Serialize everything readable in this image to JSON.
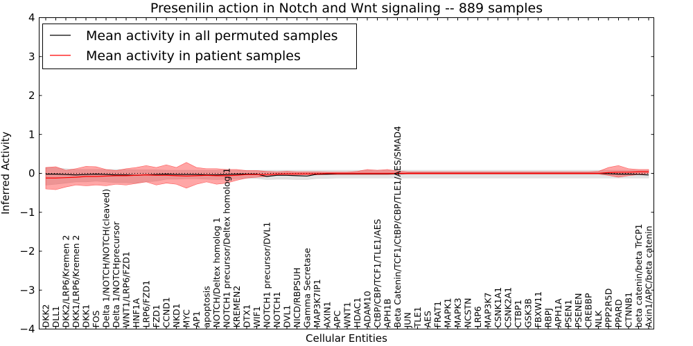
{
  "chart_data": {
    "type": "line",
    "title": "Presenilin action in Notch and Wnt signaling -- 889 samples",
    "xlabel": "Cellular Entities",
    "ylabel": "Inferred Activity",
    "ylim": [
      -4,
      4
    ],
    "yticks": [
      "4",
      "3",
      "2",
      "1",
      "0",
      "−1",
      "−2",
      "−3",
      "−4"
    ],
    "ytick_values": [
      4,
      3,
      2,
      1,
      0,
      -1,
      -2,
      -3,
      -4
    ],
    "grid": false,
    "legend_position": "top-left",
    "categories": [
      "DKK2",
      "DLL1",
      "DKK2/LRP6/Kremen 2",
      "DKK1/LRP6/Kremen 2",
      "DKK1",
      "FOS",
      "Delta 1/NOTCH/NOTCH(cleaved)",
      "Delta 1/NOTCHprecursor",
      "WNT1/LRP6/FZD1",
      "HNF1A",
      "LRP6/FZD1",
      "FZD1",
      "CCND1",
      "NKD1",
      "MYC",
      "AP1",
      "apoptosis",
      "NOTCH/Deltex homolog 1",
      "NOTCH1 precursor/Deltex homolog 1",
      "KREMEN2",
      "DTX1",
      "WIF1",
      "NOTCH1 precursor/DVL1",
      "NOTCH1",
      "DVL1",
      "NICD/RBPSUH",
      "Gamma Secretase",
      "MAP3K7IP1",
      "AXIN1",
      "APC",
      "WNT1",
      "HDAC1",
      "ADAM10",
      "CtBP/CBP/TCF1/TLE1/AES",
      "APH1B",
      "Beta Catenin/TCF1/CtBP/CBP/TLE1/AES/SMAD4",
      "JUN",
      "TLE1",
      "AES",
      "FRAT1",
      "MAPK1",
      "MAPK3",
      "NCSTN",
      "LRP6",
      "MAP3K7",
      "CSNK1A1",
      "CSNK2A1",
      "CTBP1",
      "GSK3B",
      "FBXW11",
      "RBPJ",
      "APH1A",
      "PSEN1",
      "PSENEN",
      "CREBBP",
      "NLK",
      "PPP2R5D",
      "PPARD",
      "CTNNB1",
      "beta catenin/beta TrCP1",
      "Axin1/APC/beta catenin"
    ],
    "series": [
      {
        "name": "Mean activity in all permuted samples",
        "color": "#000000",
        "values": [
          -0.02,
          -0.02,
          -0.03,
          -0.04,
          -0.03,
          -0.02,
          -0.03,
          -0.04,
          -0.04,
          -0.05,
          -0.04,
          -0.03,
          -0.02,
          -0.03,
          -0.03,
          -0.03,
          -0.04,
          -0.04,
          -0.03,
          -0.02,
          -0.02,
          -0.02,
          -0.08,
          -0.05,
          -0.05,
          -0.06,
          -0.07,
          -0.02,
          -0.02,
          -0.01,
          -0.01,
          -0.01,
          -0.01,
          -0.01,
          -0.01,
          -0.01,
          0.0,
          0.0,
          0.0,
          0.0,
          0.0,
          0.0,
          0.0,
          0.0,
          0.0,
          0.0,
          0.0,
          0.0,
          0.0,
          0.0,
          0.0,
          0.0,
          0.0,
          0.0,
          0.0,
          0.0,
          -0.01,
          -0.02,
          -0.02,
          -0.03,
          -0.04
        ],
        "lower": [
          -0.3,
          -0.28,
          -0.25,
          -0.22,
          -0.22,
          -0.2,
          -0.22,
          -0.24,
          -0.24,
          -0.25,
          -0.22,
          -0.2,
          -0.15,
          -0.15,
          -0.14,
          -0.14,
          -0.15,
          -0.16,
          -0.15,
          -0.14,
          -0.13,
          -0.13,
          -0.16,
          -0.15,
          -0.15,
          -0.16,
          -0.16,
          -0.13,
          -0.13,
          -0.12,
          -0.12,
          -0.12,
          -0.12,
          -0.12,
          -0.12,
          -0.12,
          -0.12,
          -0.12,
          -0.12,
          -0.12,
          -0.12,
          -0.12,
          -0.12,
          -0.12,
          -0.12,
          -0.12,
          -0.12,
          -0.12,
          -0.12,
          -0.12,
          -0.12,
          -0.12,
          -0.12,
          -0.12,
          -0.12,
          -0.12,
          -0.12,
          -0.12,
          -0.12,
          -0.12,
          -0.12
        ],
        "upper": [
          0.15,
          0.14,
          0.12,
          0.1,
          0.1,
          0.1,
          0.1,
          0.1,
          0.1,
          0.09,
          0.09,
          0.09,
          0.08,
          0.08,
          0.08,
          0.08,
          0.08,
          0.08,
          0.08,
          0.08,
          0.08,
          0.08,
          0.08,
          0.08,
          0.08,
          0.08,
          0.08,
          0.08,
          0.08,
          0.08,
          0.08,
          0.08,
          0.08,
          0.08,
          0.08,
          0.08,
          0.08,
          0.08,
          0.08,
          0.08,
          0.08,
          0.08,
          0.08,
          0.08,
          0.08,
          0.08,
          0.08,
          0.08,
          0.08,
          0.08,
          0.08,
          0.08,
          0.08,
          0.08,
          0.08,
          0.08,
          0.08,
          0.08,
          0.08,
          0.08,
          0.08
        ],
        "band_color": "#cccccc"
      },
      {
        "name": "Mean activity in patient samples",
        "color": "#ff0000",
        "values": [
          -0.12,
          -0.12,
          -0.11,
          -0.1,
          -0.08,
          -0.08,
          -0.07,
          -0.06,
          -0.06,
          -0.05,
          -0.04,
          -0.05,
          -0.05,
          -0.06,
          -0.07,
          -0.06,
          -0.05,
          -0.06,
          -0.06,
          -0.05,
          -0.03,
          -0.03,
          -0.03,
          -0.02,
          -0.01,
          -0.01,
          -0.01,
          -0.01,
          0.0,
          0.0,
          0.0,
          0.0,
          0.0,
          0.0,
          0.0,
          0.0,
          0.0,
          0.0,
          0.0,
          0.0,
          0.0,
          0.0,
          0.0,
          0.0,
          0.0,
          0.0,
          0.0,
          0.0,
          0.0,
          0.0,
          0.0,
          0.0,
          0.0,
          0.0,
          0.0,
          0.0,
          0.02,
          0.03,
          0.03,
          0.04,
          0.04
        ],
        "lower": [
          -0.4,
          -0.42,
          -0.35,
          -0.3,
          -0.32,
          -0.3,
          -0.32,
          -0.28,
          -0.3,
          -0.26,
          -0.22,
          -0.3,
          -0.25,
          -0.28,
          -0.38,
          -0.28,
          -0.22,
          -0.28,
          -0.25,
          -0.18,
          -0.12,
          -0.1,
          -0.08,
          -0.05,
          -0.04,
          -0.04,
          -0.04,
          -0.04,
          -0.03,
          -0.03,
          -0.03,
          -0.03,
          -0.03,
          -0.03,
          -0.03,
          -0.02,
          -0.02,
          -0.02,
          -0.02,
          -0.02,
          -0.02,
          -0.02,
          -0.02,
          -0.02,
          -0.02,
          -0.02,
          -0.02,
          -0.02,
          -0.02,
          -0.02,
          -0.02,
          -0.02,
          -0.02,
          -0.02,
          -0.02,
          -0.02,
          -0.05,
          -0.1,
          -0.06,
          -0.03,
          0.0
        ],
        "upper": [
          0.15,
          0.17,
          0.08,
          0.12,
          0.18,
          0.17,
          0.1,
          0.07,
          0.12,
          0.15,
          0.2,
          0.15,
          0.22,
          0.15,
          0.28,
          0.15,
          0.12,
          0.12,
          0.1,
          0.1,
          0.07,
          0.07,
          0.05,
          0.04,
          0.05,
          0.04,
          0.04,
          0.04,
          0.03,
          0.03,
          0.03,
          0.05,
          0.1,
          0.08,
          0.1,
          0.06,
          0.04,
          0.04,
          0.04,
          0.04,
          0.04,
          0.04,
          0.04,
          0.04,
          0.04,
          0.04,
          0.04,
          0.04,
          0.04,
          0.04,
          0.04,
          0.04,
          0.04,
          0.04,
          0.04,
          0.05,
          0.15,
          0.2,
          0.12,
          0.1,
          0.1
        ],
        "band_color": "#ff0000"
      }
    ],
    "reference_line": {
      "y": 0.0,
      "style": "dotted",
      "color": "#000000"
    }
  }
}
